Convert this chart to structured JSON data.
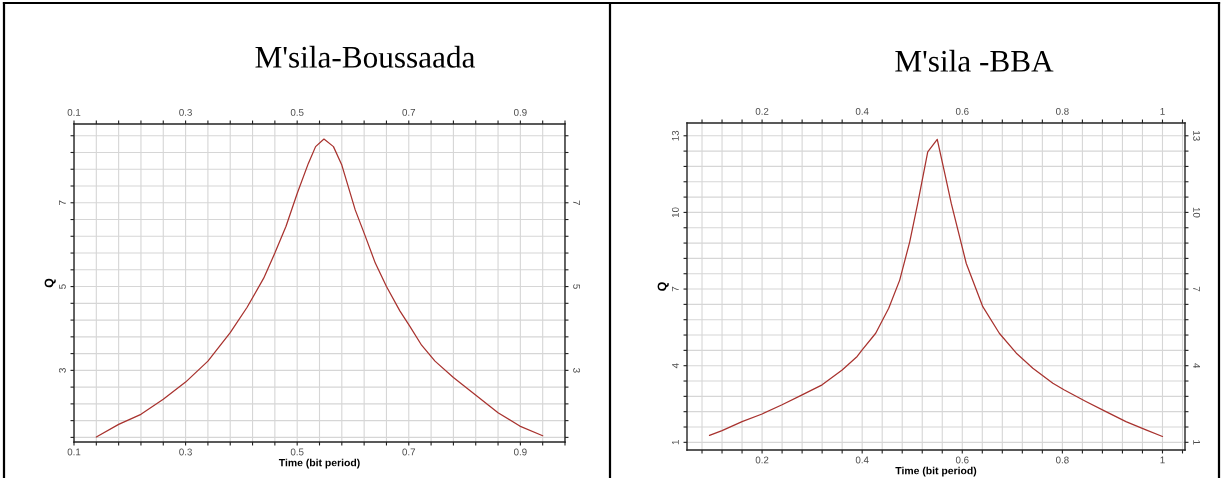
{
  "chart_data": [
    {
      "type": "line",
      "title": "M'sila-Boussaada",
      "xlabel": "Time (bit period)",
      "ylabel": "Q",
      "x": [
        0.14,
        0.18,
        0.22,
        0.26,
        0.3,
        0.34,
        0.38,
        0.41,
        0.44,
        0.46,
        0.48,
        0.5,
        0.52,
        0.533,
        0.548,
        0.565,
        0.58,
        0.604,
        0.621,
        0.64,
        0.66,
        0.684,
        0.702,
        0.723,
        0.747,
        0.78,
        0.822,
        0.86,
        0.899,
        0.94
      ],
      "series": [
        {
          "color": "#a8322e",
          "values": [
            1.41,
            1.71,
            1.95,
            2.31,
            2.72,
            3.22,
            3.9,
            4.5,
            5.2,
            5.8,
            6.44,
            7.22,
            7.94,
            8.34,
            8.52,
            8.34,
            7.9,
            6.83,
            6.24,
            5.56,
            5.0,
            4.42,
            4.05,
            3.6,
            3.22,
            2.83,
            2.39,
            1.99,
            1.67,
            1.44
          ]
        }
      ],
      "xlim": [
        0.1,
        0.98
      ],
      "xticks": [
        0.1,
        {
          "value": 0.14,
          "label": null
        },
        {
          "value": 0.18,
          "label": null
        },
        {
          "value": 0.22,
          "label": null
        },
        {
          "value": 0.26,
          "label": null
        },
        0.3,
        {
          "value": 0.34,
          "label": null
        },
        {
          "value": 0.38,
          "label": null
        },
        {
          "value": 0.42,
          "label": null
        },
        {
          "value": 0.46,
          "label": null
        },
        0.5,
        {
          "value": 0.54,
          "label": null
        },
        {
          "value": 0.58,
          "label": null
        },
        {
          "value": 0.62,
          "label": null
        },
        {
          "value": 0.66,
          "label": null
        },
        0.7,
        {
          "value": 0.74,
          "label": null
        },
        {
          "value": 0.78,
          "label": null
        },
        {
          "value": 0.82,
          "label": null
        },
        {
          "value": 0.86,
          "label": null
        },
        0.9,
        {
          "value": 0.94,
          "label": null
        },
        {
          "value": 0.98,
          "label": null
        }
      ],
      "x2lim": [
        0.1,
        0.98
      ],
      "x2ticks": [
        0.1,
        {
          "value": 0.14,
          "label": null
        },
        {
          "value": 0.18,
          "label": null
        },
        {
          "value": 0.22,
          "label": null
        },
        {
          "value": 0.26,
          "label": null
        },
        0.3,
        {
          "value": 0.34,
          "label": null
        },
        {
          "value": 0.38,
          "label": null
        },
        {
          "value": 0.42,
          "label": null
        },
        {
          "value": 0.46,
          "label": null
        },
        0.5,
        {
          "value": 0.54,
          "label": null
        },
        {
          "value": 0.58,
          "label": null
        },
        {
          "value": 0.62,
          "label": null
        },
        {
          "value": 0.66,
          "label": null
        },
        0.7,
        {
          "value": 0.74,
          "label": null
        },
        {
          "value": 0.78,
          "label": null
        },
        {
          "value": 0.82,
          "label": null
        },
        {
          "value": 0.86,
          "label": null
        },
        0.9,
        {
          "value": 0.94,
          "label": null
        },
        {
          "value": 0.98,
          "label": null
        }
      ],
      "ylim": [
        1.29,
        8.88
      ],
      "yticks": [
        {
          "value": 1.4,
          "label": null
        },
        {
          "value": 1.8,
          "label": null
        },
        {
          "value": 2.2,
          "label": null
        },
        {
          "value": 2.6,
          "label": null
        },
        3,
        {
          "value": 3.4,
          "label": null
        },
        {
          "value": 3.8,
          "label": null
        },
        {
          "value": 4.2,
          "label": null
        },
        {
          "value": 4.6,
          "label": null
        },
        5,
        {
          "value": 5.4,
          "label": null
        },
        {
          "value": 5.8,
          "label": null
        },
        {
          "value": 6.2,
          "label": null
        },
        {
          "value": 6.6,
          "label": null
        },
        7,
        {
          "value": 7.4,
          "label": null
        },
        {
          "value": 7.8,
          "label": null
        },
        {
          "value": 8.2,
          "label": null
        },
        {
          "value": 8.6,
          "label": null
        }
      ],
      "y2lim": [
        1.29,
        8.88
      ],
      "y2ticks": [
        {
          "value": 1.4,
          "label": null
        },
        {
          "value": 1.8,
          "label": null
        },
        {
          "value": 2.2,
          "label": null
        },
        {
          "value": 2.6,
          "label": null
        },
        3,
        {
          "value": 3.4,
          "label": null
        },
        {
          "value": 3.8,
          "label": null
        },
        {
          "value": 4.2,
          "label": null
        },
        {
          "value": 4.6,
          "label": null
        },
        5,
        {
          "value": 5.4,
          "label": null
        },
        {
          "value": 5.8,
          "label": null
        },
        {
          "value": 6.2,
          "label": null
        },
        {
          "value": 6.6,
          "label": null
        },
        7,
        {
          "value": 7.4,
          "label": null
        },
        {
          "value": 7.8,
          "label": null
        },
        {
          "value": 8.2,
          "label": null
        },
        {
          "value": 8.6,
          "label": null
        }
      ],
      "grid": true
    },
    {
      "type": "line",
      "title": "M'sila -BBA",
      "xlabel": "Time (bit period)",
      "ylabel": "Q",
      "x": [
        0.095,
        0.12,
        0.16,
        0.2,
        0.24,
        0.28,
        0.32,
        0.36,
        0.39,
        0.4,
        0.427,
        0.453,
        0.475,
        0.495,
        0.511,
        0.531,
        0.55,
        0.565,
        0.578,
        0.608,
        0.641,
        0.674,
        0.708,
        0.741,
        0.781,
        0.804,
        0.847,
        0.887,
        0.927,
        0.967,
        1.0
      ],
      "series": [
        {
          "color": "#a8322e",
          "values": [
            1.27,
            1.46,
            1.81,
            2.11,
            2.47,
            2.86,
            3.25,
            3.83,
            4.36,
            4.62,
            5.27,
            6.25,
            7.35,
            8.85,
            10.35,
            12.37,
            12.86,
            11.53,
            10.35,
            8.0,
            6.31,
            5.27,
            4.49,
            3.9,
            3.31,
            3.05,
            2.6,
            2.2,
            1.81,
            1.49,
            1.23
          ]
        }
      ],
      "xlim": [
        0.05,
        1.045
      ],
      "xticks": [
        {
          "value": 0.08,
          "label": null
        },
        {
          "value": 0.12,
          "label": null
        },
        {
          "value": 0.16,
          "label": null
        },
        0.2,
        {
          "value": 0.24,
          "label": null
        },
        {
          "value": 0.28,
          "label": null
        },
        {
          "value": 0.32,
          "label": null
        },
        {
          "value": 0.36,
          "label": null
        },
        0.4,
        {
          "value": 0.44,
          "label": null
        },
        {
          "value": 0.48,
          "label": null
        },
        {
          "value": 0.52,
          "label": null
        },
        {
          "value": 0.56,
          "label": null
        },
        0.6,
        {
          "value": 0.64,
          "label": null
        },
        {
          "value": 0.68,
          "label": null
        },
        {
          "value": 0.72,
          "label": null
        },
        {
          "value": 0.76,
          "label": null
        },
        0.8,
        {
          "value": 0.84,
          "label": null
        },
        {
          "value": 0.88,
          "label": null
        },
        {
          "value": 0.92,
          "label": null
        },
        {
          "value": 0.96,
          "label": null
        },
        1,
        {
          "value": 1.04,
          "label": null
        }
      ],
      "x2lim": [
        0.05,
        1.045
      ],
      "x2ticks": [
        {
          "value": 0.08,
          "label": null
        },
        {
          "value": 0.12,
          "label": null
        },
        {
          "value": 0.16,
          "label": null
        },
        0.2,
        {
          "value": 0.24,
          "label": null
        },
        {
          "value": 0.28,
          "label": null
        },
        {
          "value": 0.32,
          "label": null
        },
        {
          "value": 0.36,
          "label": null
        },
        0.4,
        {
          "value": 0.44,
          "label": null
        },
        {
          "value": 0.48,
          "label": null
        },
        {
          "value": 0.52,
          "label": null
        },
        {
          "value": 0.56,
          "label": null
        },
        0.6,
        {
          "value": 0.64,
          "label": null
        },
        {
          "value": 0.68,
          "label": null
        },
        {
          "value": 0.72,
          "label": null
        },
        {
          "value": 0.76,
          "label": null
        },
        0.8,
        {
          "value": 0.84,
          "label": null
        },
        {
          "value": 0.88,
          "label": null
        },
        {
          "value": 0.92,
          "label": null
        },
        {
          "value": 0.96,
          "label": null
        },
        1,
        {
          "value": 1.04,
          "label": null
        }
      ],
      "ylim": [
        0.7,
        13.5
      ],
      "yticks": [
        1,
        {
          "value": 1.6,
          "label": null
        },
        {
          "value": 2.2,
          "label": null
        },
        {
          "value": 2.8,
          "label": null
        },
        {
          "value": 3.4,
          "label": null
        },
        4,
        {
          "value": 4.6,
          "label": null
        },
        {
          "value": 5.2,
          "label": null
        },
        {
          "value": 5.8,
          "label": null
        },
        {
          "value": 6.4,
          "label": null
        },
        7,
        {
          "value": 7.6,
          "label": null
        },
        {
          "value": 8.2,
          "label": null
        },
        {
          "value": 8.8,
          "label": null
        },
        {
          "value": 9.4,
          "label": null
        },
        10,
        {
          "value": 10.6,
          "label": null
        },
        {
          "value": 11.2,
          "label": null
        },
        {
          "value": 11.8,
          "label": null
        },
        {
          "value": 12.4,
          "label": null
        },
        13
      ],
      "y2lim": [
        0.7,
        13.5
      ],
      "y2ticks": [
        1,
        {
          "value": 1.6,
          "label": null
        },
        {
          "value": 2.2,
          "label": null
        },
        {
          "value": 2.8,
          "label": null
        },
        {
          "value": 3.4,
          "label": null
        },
        4,
        {
          "value": 4.6,
          "label": null
        },
        {
          "value": 5.2,
          "label": null
        },
        {
          "value": 5.8,
          "label": null
        },
        {
          "value": 6.4,
          "label": null
        },
        7,
        {
          "value": 7.6,
          "label": null
        },
        {
          "value": 8.2,
          "label": null
        },
        {
          "value": 8.8,
          "label": null
        },
        {
          "value": 9.4,
          "label": null
        },
        10,
        {
          "value": 10.6,
          "label": null
        },
        {
          "value": 11.2,
          "label": null
        },
        {
          "value": 11.8,
          "label": null
        },
        {
          "value": 12.4,
          "label": null
        },
        13
      ],
      "grid": true
    }
  ]
}
